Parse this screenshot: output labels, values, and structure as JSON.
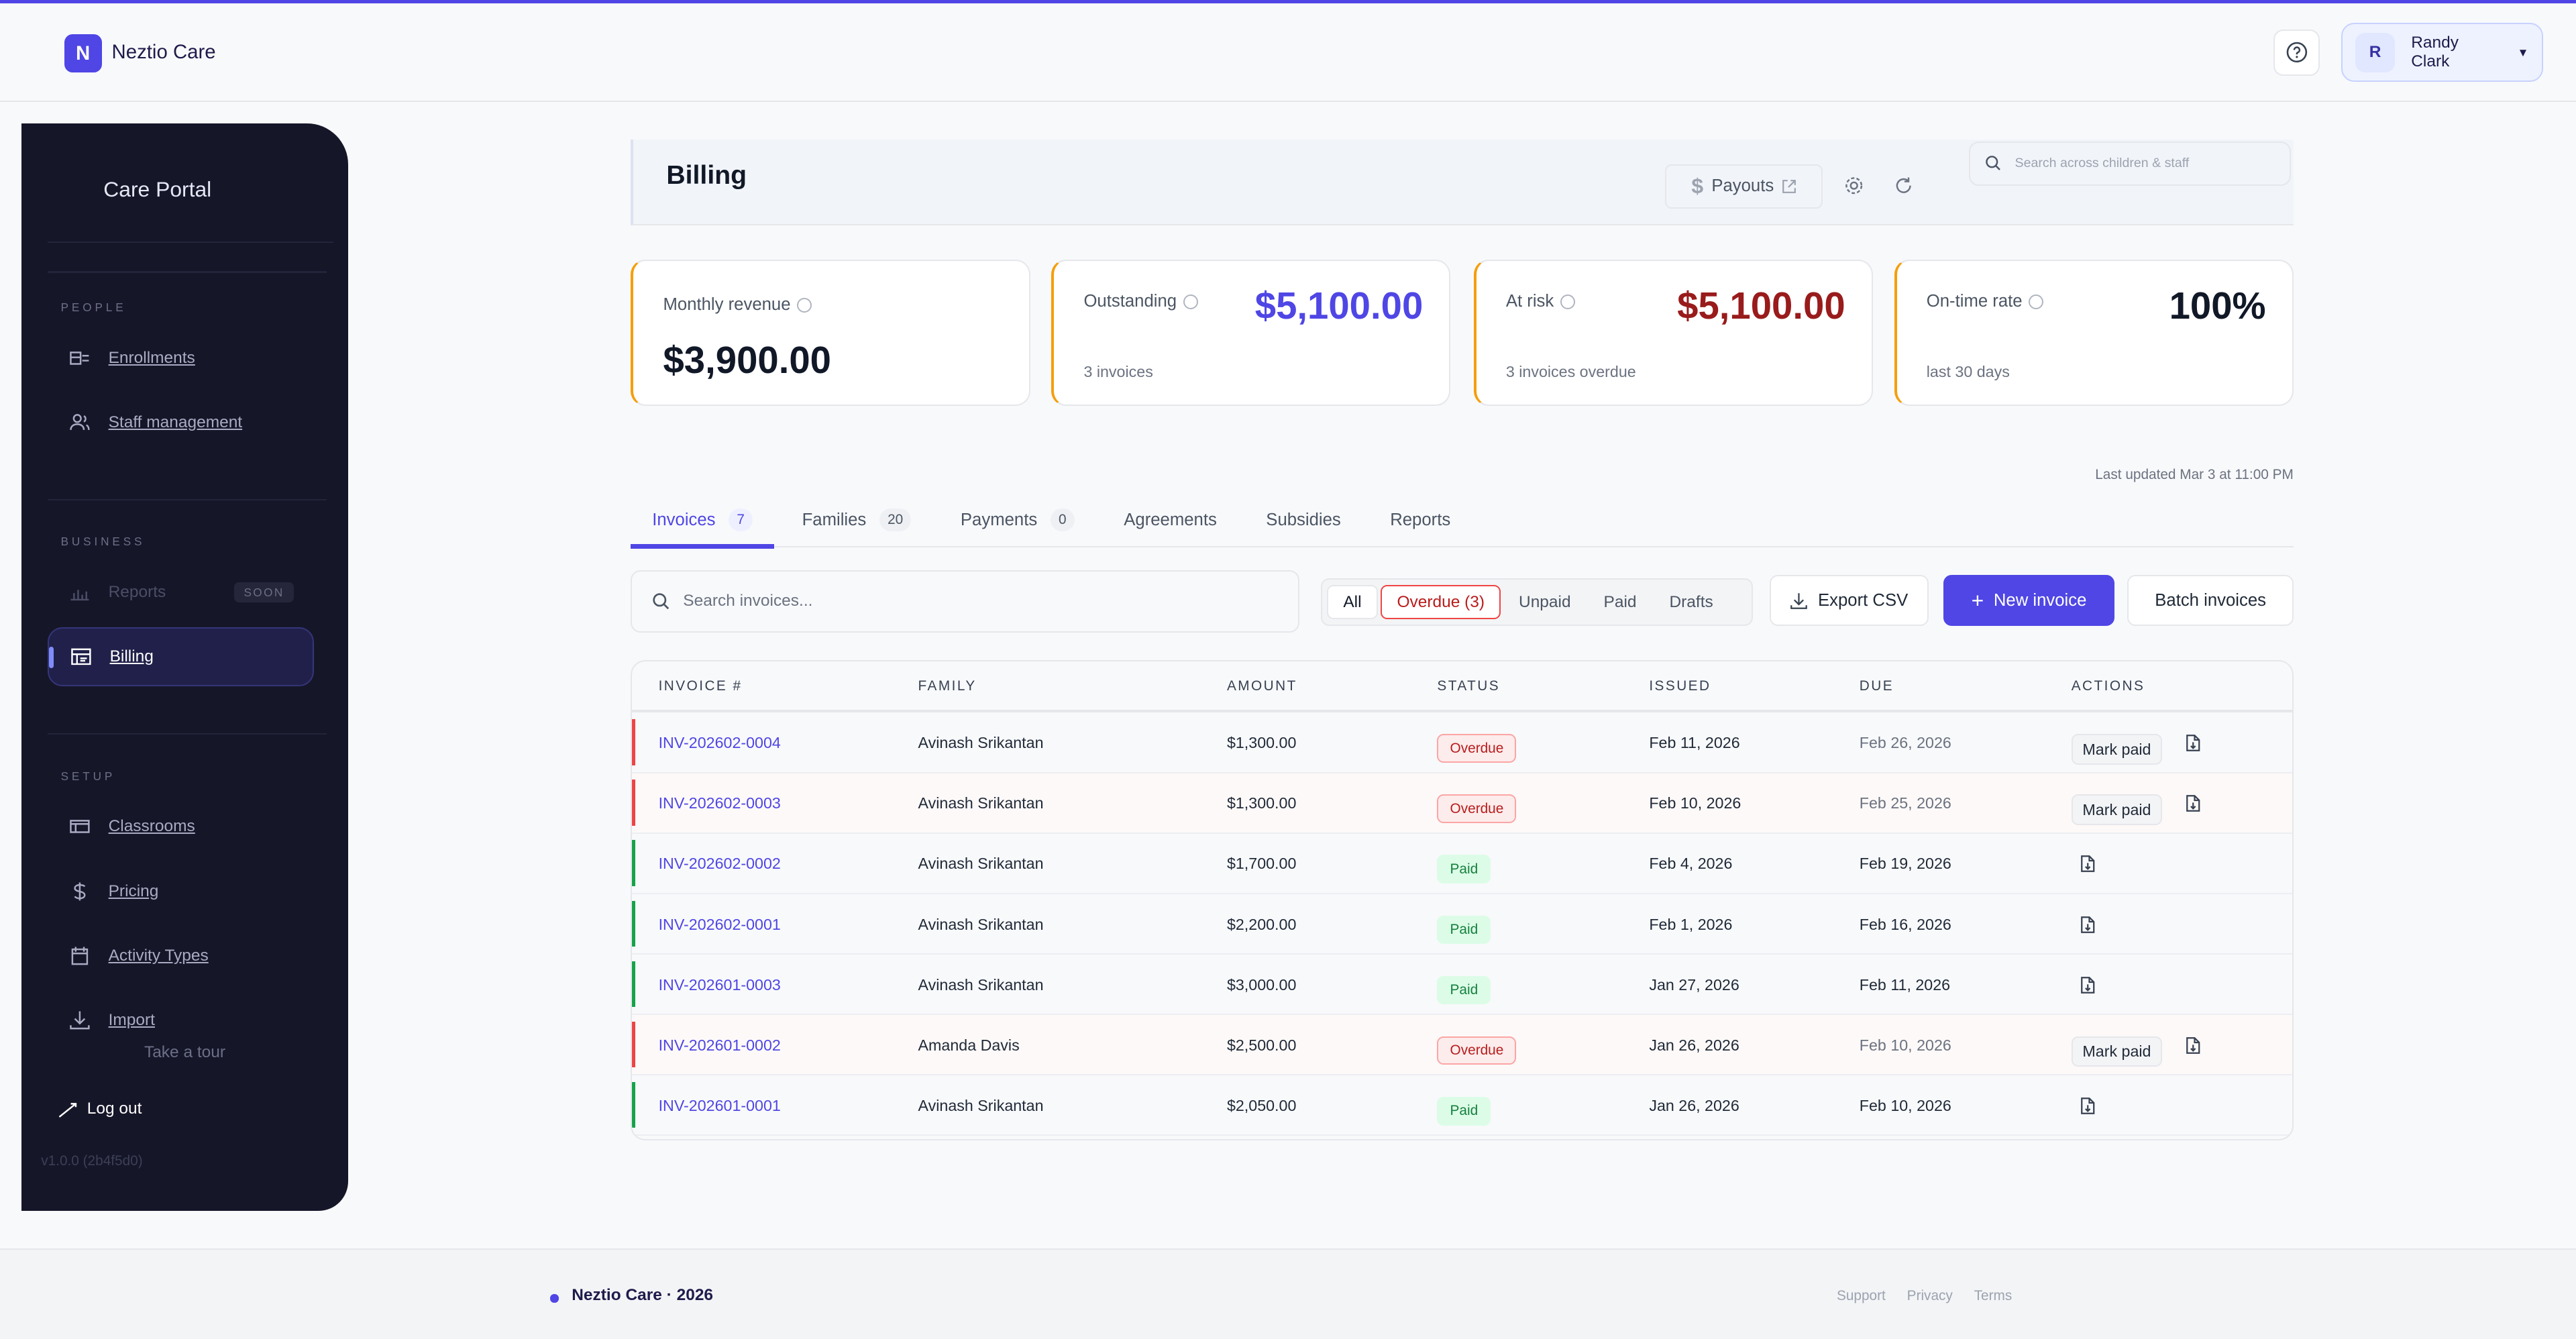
{
  "app": {
    "logo_letter": "N",
    "name": "Neztio Care",
    "accent": "#4f46e5"
  },
  "user": {
    "initial": "R",
    "name": "Randy Clark"
  },
  "sidebar": {
    "title": "Care Portal",
    "sections": [
      {
        "label": "PEOPLE",
        "items": [
          {
            "label": "Enrollments",
            "icon": "enrollments-icon"
          },
          {
            "label": "Staff management",
            "icon": "users-icon"
          }
        ]
      },
      {
        "label": "BUSINESS",
        "items": [
          {
            "label": "Reports",
            "icon": "bar-chart-icon",
            "badge": "SOON",
            "disabled": true
          },
          {
            "label": "Billing",
            "icon": "billing-icon",
            "active": true
          }
        ]
      },
      {
        "label": "SETUP",
        "items": [
          {
            "label": "Classrooms",
            "icon": "classrooms-icon"
          },
          {
            "label": "Pricing",
            "icon": "dollar-icon"
          },
          {
            "label": "Activity Types",
            "icon": "calendar-icon"
          },
          {
            "label": "Import",
            "icon": "download-icon"
          }
        ]
      }
    ],
    "tour": "Take a tour",
    "logout": "Log out",
    "version": "v1.0.0 (2b4f5d0)"
  },
  "page": {
    "title": "Billing",
    "payouts": "Payouts",
    "search_placeholder": "Search across children & staff"
  },
  "kpis": [
    {
      "label": "Monthly revenue",
      "value": "$3,900.00",
      "color": "#111827"
    },
    {
      "label": "Outstanding",
      "value": "$5,100.00",
      "sub": "3 invoices",
      "color": "#4f46e5"
    },
    {
      "label": "At risk",
      "value": "$5,100.00",
      "sub": "3 invoices overdue",
      "color": "#991b1b"
    },
    {
      "label": "On-time rate",
      "value": "100%",
      "sub": "last 30 days",
      "color": "#111827"
    }
  ],
  "last_updated": "Last updated Mar 3 at 11:00 PM",
  "tabs": [
    {
      "label": "Invoices",
      "count": "7",
      "active": true
    },
    {
      "label": "Families",
      "count": "20"
    },
    {
      "label": "Payments",
      "count": "0"
    },
    {
      "label": "Agreements"
    },
    {
      "label": "Subsidies"
    },
    {
      "label": "Reports"
    }
  ],
  "toolbar": {
    "search_placeholder": "Search invoices...",
    "filters": [
      "All",
      "Overdue (3)",
      "Unpaid",
      "Paid",
      "Drafts"
    ],
    "export": "Export CSV",
    "new_invoice": "New invoice",
    "batch": "Batch invoices"
  },
  "table": {
    "columns": [
      "INVOICE #",
      "FAMILY",
      "AMOUNT",
      "STATUS",
      "ISSUED",
      "DUE",
      "ACTIONS"
    ],
    "mark_paid": "Mark paid",
    "rows": [
      {
        "invoice": "INV-202602-0004",
        "family": "Avinash Srikantan",
        "amount": "$1,300.00",
        "status": "Overdue",
        "issued": "Feb 11, 2026",
        "due": "Feb 26, 2026"
      },
      {
        "invoice": "INV-202602-0003",
        "family": "Avinash Srikantan",
        "amount": "$1,300.00",
        "status": "Overdue",
        "issued": "Feb 10, 2026",
        "due": "Feb 25, 2026"
      },
      {
        "invoice": "INV-202602-0002",
        "family": "Avinash Srikantan",
        "amount": "$1,700.00",
        "status": "Paid",
        "issued": "Feb 4, 2026",
        "due": "Feb 19, 2026"
      },
      {
        "invoice": "INV-202602-0001",
        "family": "Avinash Srikantan",
        "amount": "$2,200.00",
        "status": "Paid",
        "issued": "Feb 1, 2026",
        "due": "Feb 16, 2026"
      },
      {
        "invoice": "INV-202601-0003",
        "family": "Avinash Srikantan",
        "amount": "$3,000.00",
        "status": "Paid",
        "issued": "Jan 27, 2026",
        "due": "Feb 11, 2026"
      },
      {
        "invoice": "INV-202601-0002",
        "family": "Amanda Davis",
        "amount": "$2,500.00",
        "status": "Overdue",
        "issued": "Jan 26, 2026",
        "due": "Feb 10, 2026"
      },
      {
        "invoice": "INV-202601-0001",
        "family": "Avinash Srikantan",
        "amount": "$2,050.00",
        "status": "Paid",
        "issued": "Jan 26, 2026",
        "due": "Feb 10, 2026"
      }
    ]
  },
  "footer": {
    "brand": "Neztio Care · 2026",
    "links": [
      "Support",
      "Privacy",
      "Terms"
    ]
  }
}
